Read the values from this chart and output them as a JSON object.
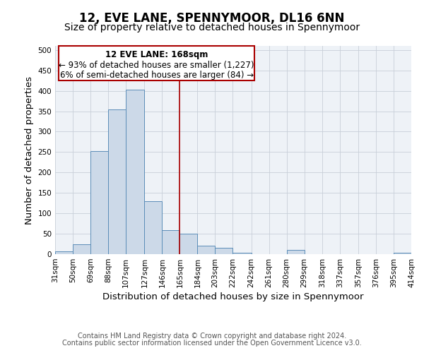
{
  "title": "12, EVE LANE, SPENNYMOOR, DL16 6NN",
  "subtitle": "Size of property relative to detached houses in Spennymoor",
  "xlabel": "Distribution of detached houses by size in Spennymoor",
  "ylabel": "Number of detached properties",
  "bar_lefts": [
    31,
    50,
    69,
    88,
    107,
    127,
    146,
    165,
    184,
    203,
    222,
    242,
    261,
    280,
    299,
    318,
    337,
    357,
    376,
    395
  ],
  "bar_widths": [
    19,
    19,
    19,
    19,
    20,
    19,
    19,
    19,
    19,
    19,
    20,
    19,
    19,
    19,
    19,
    19,
    20,
    19,
    19,
    19
  ],
  "bar_heights": [
    7,
    25,
    252,
    355,
    402,
    130,
    59,
    50,
    20,
    16,
    4,
    0,
    0,
    10,
    0,
    0,
    0,
    0,
    0,
    3
  ],
  "tick_labels": [
    "31sqm",
    "50sqm",
    "69sqm",
    "88sqm",
    "107sqm",
    "127sqm",
    "146sqm",
    "165sqm",
    "184sqm",
    "203sqm",
    "222sqm",
    "242sqm",
    "261sqm",
    "280sqm",
    "299sqm",
    "318sqm",
    "337sqm",
    "357sqm",
    "376sqm",
    "395sqm",
    "414sqm"
  ],
  "tick_positions": [
    31,
    50,
    69,
    88,
    107,
    127,
    146,
    165,
    184,
    203,
    222,
    242,
    261,
    280,
    299,
    318,
    337,
    357,
    376,
    395,
    414
  ],
  "bar_color": "#ccd9e8",
  "bar_edge_color": "#5b8db8",
  "vline_x": 165,
  "vline_color": "#aa0000",
  "ylim": [
    0,
    510
  ],
  "xlim": [
    31,
    414
  ],
  "yticks": [
    0,
    50,
    100,
    150,
    200,
    250,
    300,
    350,
    400,
    450,
    500
  ],
  "bg_color": "#eef2f7",
  "grid_color": "#c8cfd8",
  "ann_line1": "12 EVE LANE: 168sqm",
  "ann_line2": "← 93% of detached houses are smaller (1,227)",
  "ann_line3": "6% of semi-detached houses are larger (84) →",
  "footer_line1": "Contains HM Land Registry data © Crown copyright and database right 2024.",
  "footer_line2": "Contains public sector information licensed under the Open Government Licence v3.0.",
  "title_fontsize": 12,
  "subtitle_fontsize": 10,
  "axis_label_fontsize": 9.5,
  "tick_fontsize": 7.5,
  "annotation_fontsize": 8.5,
  "footer_fontsize": 7
}
